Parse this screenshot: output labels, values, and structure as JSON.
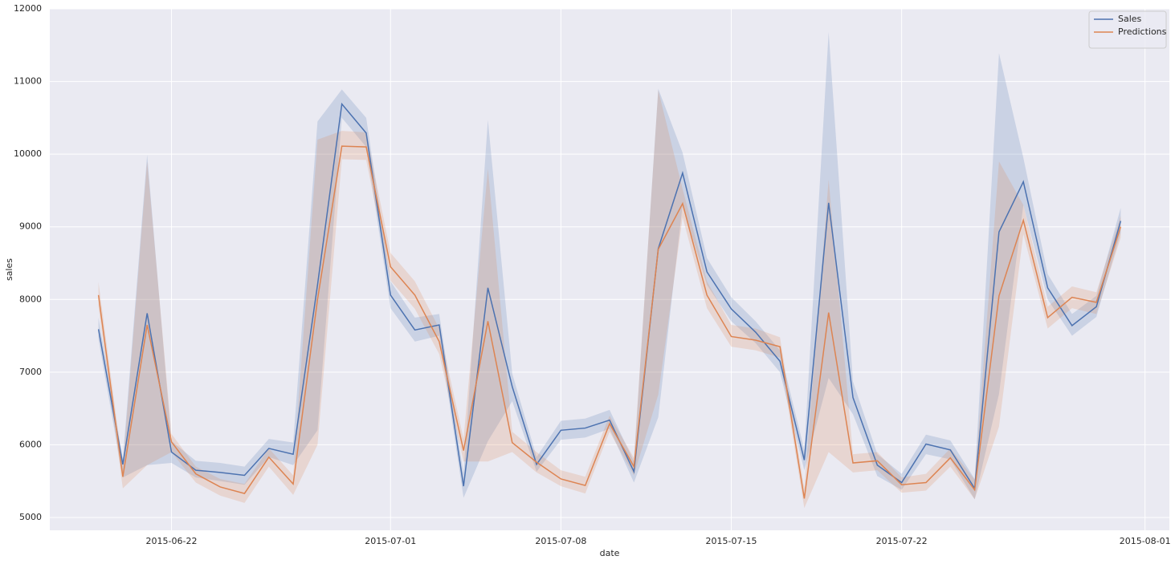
{
  "chart_data": {
    "type": "line",
    "x_label": "date",
    "y_label": "sales",
    "x": [
      "2015-06-19",
      "2015-06-20",
      "2015-06-21",
      "2015-06-22",
      "2015-06-23",
      "2015-06-24",
      "2015-06-25",
      "2015-06-26",
      "2015-06-27",
      "2015-06-28",
      "2015-06-29",
      "2015-06-30",
      "2015-07-01",
      "2015-07-02",
      "2015-07-03",
      "2015-07-04",
      "2015-07-05",
      "2015-07-06",
      "2015-07-07",
      "2015-07-08",
      "2015-07-09",
      "2015-07-10",
      "2015-07-11",
      "2015-07-12",
      "2015-07-13",
      "2015-07-14",
      "2015-07-15",
      "2015-07-16",
      "2015-07-17",
      "2015-07-18",
      "2015-07-19",
      "2015-07-20",
      "2015-07-21",
      "2015-07-22",
      "2015-07-23",
      "2015-07-24",
      "2015-07-25",
      "2015-07-26",
      "2015-07-27",
      "2015-07-28",
      "2015-07-29",
      "2015-07-30",
      "2015-07-31"
    ],
    "series": [
      {
        "name": "Sales",
        "color": "#4c72b0",
        "values": [
          7590,
          5730,
          7810,
          5900,
          5650,
          5620,
          5580,
          5950,
          5870,
          8200,
          10690,
          10290,
          8060,
          7580,
          7650,
          5430,
          8160,
          6800,
          5730,
          6200,
          6230,
          6340,
          5630,
          8700,
          9740,
          8380,
          7870,
          7550,
          7150,
          5790,
          9330,
          6650,
          5720,
          5480,
          6010,
          5930,
          5400,
          8930,
          9620,
          8160,
          7640,
          7900,
          9080
        ],
        "ci_lower": [
          7450,
          5550,
          5720,
          5750,
          5550,
          5500,
          5450,
          5830,
          5720,
          6200,
          10500,
          10100,
          7880,
          7420,
          7500,
          5270,
          6050,
          6600,
          5630,
          6070,
          6100,
          6220,
          5480,
          6380,
          9300,
          8200,
          7700,
          7400,
          7000,
          5650,
          6920,
          6420,
          5570,
          5380,
          5870,
          5800,
          5250,
          6700,
          9300,
          8000,
          7500,
          7760,
          8920
        ],
        "ci_upper": [
          7750,
          5800,
          9990,
          6050,
          5780,
          5750,
          5700,
          6080,
          6030,
          10450,
          10890,
          10500,
          8250,
          7750,
          7800,
          5600,
          10470,
          6980,
          5830,
          6330,
          6360,
          6480,
          5770,
          10900,
          10020,
          8570,
          8030,
          7700,
          7300,
          5930,
          11680,
          6870,
          5870,
          5600,
          6140,
          6060,
          5530,
          11390,
          9950,
          8350,
          7800,
          8050,
          9260
        ]
      },
      {
        "name": "Predictions",
        "color": "#dd8452",
        "values": [
          8060,
          5560,
          7650,
          6040,
          5600,
          5420,
          5330,
          5830,
          5460,
          8000,
          10110,
          10100,
          8450,
          8060,
          7420,
          5920,
          7700,
          6030,
          5760,
          5530,
          5440,
          6290,
          5700,
          8690,
          9320,
          8060,
          7490,
          7440,
          7350,
          5260,
          7820,
          5750,
          5780,
          5450,
          5480,
          5820,
          5380,
          8050,
          9090,
          7750,
          8030,
          7960,
          9000
        ],
        "ci_lower": [
          7900,
          5400,
          5720,
          5900,
          5480,
          5300,
          5200,
          5700,
          5310,
          6000,
          9930,
          9920,
          8260,
          7870,
          7250,
          5770,
          5770,
          5900,
          5620,
          5430,
          5330,
          6180,
          5580,
          6690,
          9130,
          7880,
          7350,
          7300,
          7200,
          5130,
          5900,
          5620,
          5650,
          5340,
          5370,
          5700,
          5250,
          6250,
          8900,
          7600,
          7880,
          7800,
          8850
        ],
        "ci_upper": [
          8240,
          5700,
          9900,
          6150,
          5700,
          5530,
          5460,
          5950,
          5580,
          10200,
          10320,
          10300,
          8640,
          8250,
          7600,
          6080,
          9800,
          6180,
          5900,
          5650,
          5560,
          6400,
          5820,
          10880,
          9520,
          8250,
          7650,
          7600,
          7480,
          5400,
          9650,
          5870,
          5900,
          5550,
          5600,
          5950,
          5520,
          9900,
          9300,
          7900,
          8180,
          8100,
          9150
        ]
      }
    ],
    "xlim": [
      "2015-06-17",
      "2015-08-02"
    ],
    "xticks": [
      "2015-06-22",
      "2015-07-01",
      "2015-07-08",
      "2015-07-15",
      "2015-07-22",
      "2015-08-01"
    ],
    "ylim": [
      4823,
      12000
    ],
    "yticks": [
      5000,
      6000,
      7000,
      8000,
      9000,
      10000,
      11000,
      12000
    ],
    "grid": true,
    "legend": "upper right"
  }
}
